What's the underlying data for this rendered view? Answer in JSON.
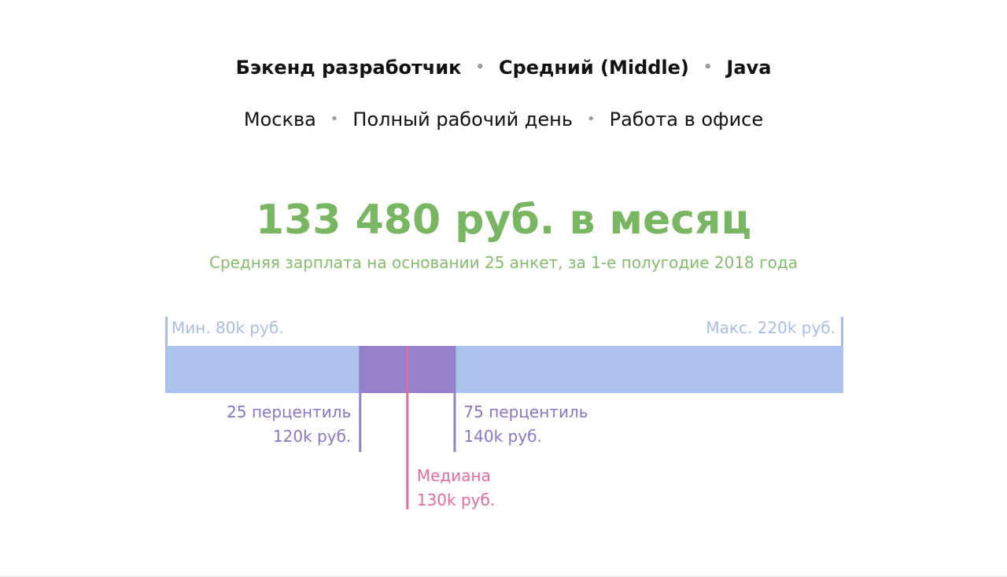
{
  "header": {
    "primary_tags": [
      "Бэкенд разработчик",
      "Средний (Middle)",
      "Java"
    ],
    "secondary_tags": [
      "Москва",
      "Полный рабочий день",
      "Работа в офисе"
    ],
    "separator": "•"
  },
  "summary": {
    "headline": "133 480 руб. в месяц",
    "subline": "Средняя зарплата на основании 25 анкет, за 1-е полугодие 2018 года"
  },
  "chart_data": {
    "type": "range",
    "unit": "k руб.",
    "min": 80,
    "max": 220,
    "p25": 120,
    "median": 130,
    "p75": 140,
    "labels": {
      "min": "Мин. 80k руб.",
      "max": "Макс. 220k руб.",
      "p25_title": "25 перцентиль",
      "p25_value": "120k руб.",
      "median_title": "Медиана",
      "median_value": "130k руб.",
      "p75_title": "75 перцентиль",
      "p75_value": "140k руб."
    }
  },
  "colors": {
    "text": "#111111",
    "separator": "#9a9a9a",
    "accent_green": "#79b661",
    "subline_green": "#84bb6c",
    "range_bar": "#abc2ec",
    "range_label": "#a9bde4",
    "iqr": "#9580cc",
    "percentile_text": "#8d75c4",
    "median": "#de6e9e"
  }
}
